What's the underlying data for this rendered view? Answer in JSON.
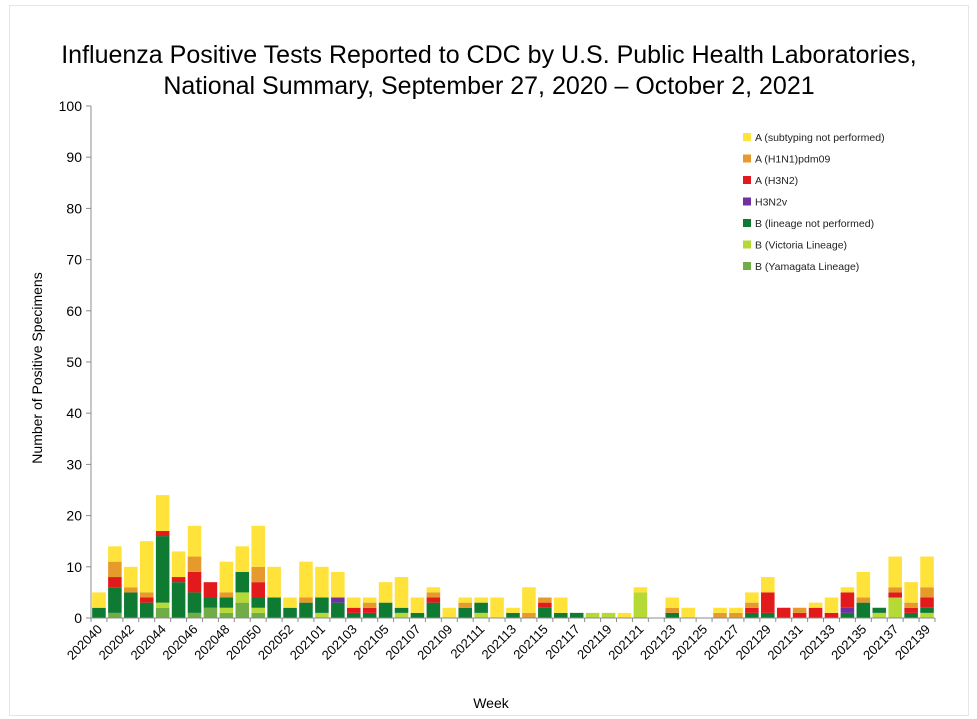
{
  "chart_data": {
    "type": "bar",
    "stacked": true,
    "title": "Influenza Positive Tests Reported to CDC by U.S. Public Health Laboratories,",
    "subtitle": "National Summary, September 27, 2020 – October 2, 2021",
    "xlabel": "Week",
    "ylabel": "Number of Positive Specimens",
    "ylim": [
      0,
      100
    ],
    "yticks": [
      0,
      10,
      20,
      30,
      40,
      50,
      60,
      70,
      80,
      90,
      100
    ],
    "grid": false,
    "legend_position": "top-right",
    "tick_labels": [
      "202040",
      "202042",
      "202044",
      "202046",
      "202048",
      "202050",
      "202052",
      "202101",
      "202103",
      "202105",
      "202107",
      "202109",
      "202111",
      "202113",
      "202115",
      "202117",
      "202119",
      "202121",
      "202123",
      "202125",
      "202127",
      "202129",
      "202131",
      "202133",
      "202135",
      "202137",
      "202139"
    ],
    "categories": [
      "202040",
      "202041",
      "202042",
      "202043",
      "202044",
      "202045",
      "202046",
      "202047",
      "202048",
      "202049",
      "202050",
      "202051",
      "202052",
      "202053",
      "202101",
      "202102",
      "202103",
      "202104",
      "202105",
      "202106",
      "202107",
      "202108",
      "202109",
      "202110",
      "202111",
      "202112",
      "202113",
      "202114",
      "202115",
      "202116",
      "202117",
      "202118",
      "202119",
      "202120",
      "202121",
      "202122",
      "202123",
      "202124",
      "202125",
      "202126",
      "202127",
      "202128",
      "202129",
      "202130",
      "202131",
      "202132",
      "202133",
      "202134",
      "202135",
      "202136",
      "202137",
      "202138",
      "202139"
    ],
    "series": [
      {
        "name": "B (Yamagata Lineage)",
        "color": "#70AD47",
        "values": [
          0,
          1,
          0,
          0,
          2,
          0,
          1,
          2,
          1,
          3,
          1,
          0,
          0,
          0,
          0,
          0,
          0,
          0,
          0,
          0,
          0,
          0,
          0,
          0,
          0,
          0,
          0,
          0,
          0,
          0,
          0,
          0,
          0,
          0,
          0,
          0,
          0,
          0,
          0,
          0,
          0,
          0,
          0,
          0,
          0,
          0,
          0,
          0,
          0,
          0,
          0,
          0,
          0
        ]
      },
      {
        "name": "B (Victoria Lineage)",
        "color": "#B5D935",
        "values": [
          0,
          0,
          0,
          0,
          1,
          0,
          0,
          0,
          1,
          2,
          1,
          0,
          0,
          0,
          1,
          0,
          0,
          0,
          0,
          1,
          0,
          0,
          0,
          0,
          1,
          0,
          0,
          0,
          0,
          0,
          0,
          1,
          1,
          0,
          5,
          0,
          0,
          0,
          0,
          0,
          0,
          0,
          0,
          0,
          0,
          0,
          0,
          0,
          0,
          1,
          4,
          0,
          1
        ]
      },
      {
        "name": "B (lineage not performed)",
        "color": "#0E7A32",
        "values": [
          2,
          5,
          5,
          3,
          13,
          7,
          4,
          2,
          2,
          4,
          2,
          4,
          2,
          3,
          3,
          3,
          1,
          1,
          3,
          1,
          1,
          3,
          0,
          2,
          2,
          0,
          1,
          0,
          2,
          1,
          1,
          0,
          0,
          0,
          0,
          0,
          1,
          0,
          0,
          0,
          0,
          1,
          1,
          0,
          0,
          0,
          0,
          1,
          3,
          1,
          0,
          1,
          1
        ]
      },
      {
        "name": "H3N2v",
        "color": "#7030A0",
        "values": [
          0,
          0,
          0,
          0,
          0,
          0,
          0,
          0,
          0,
          0,
          0,
          0,
          0,
          0,
          0,
          1,
          0,
          0,
          0,
          0,
          0,
          0,
          0,
          0,
          0,
          0,
          0,
          0,
          0,
          0,
          0,
          0,
          0,
          0,
          0,
          0,
          0,
          0,
          0,
          0,
          0,
          0,
          0,
          0,
          0,
          0,
          0,
          1,
          0,
          0,
          0,
          0,
          0
        ]
      },
      {
        "name": "A (H3N2)",
        "color": "#E31A1C",
        "values": [
          0,
          2,
          0,
          1,
          1,
          1,
          4,
          3,
          0,
          0,
          3,
          0,
          0,
          0,
          0,
          0,
          1,
          1,
          0,
          0,
          0,
          1,
          0,
          0,
          0,
          0,
          0,
          0,
          1,
          0,
          0,
          0,
          0,
          0,
          0,
          0,
          0,
          0,
          0,
          0,
          0,
          1,
          4,
          2,
          1,
          2,
          1,
          3,
          0,
          0,
          1,
          1,
          2
        ]
      },
      {
        "name": "A (H1N1)pdm09",
        "color": "#E59A2B",
        "values": [
          0,
          3,
          1,
          1,
          0,
          0,
          3,
          0,
          1,
          0,
          3,
          0,
          0,
          1,
          0,
          0,
          0,
          1,
          0,
          0,
          0,
          1,
          0,
          1,
          0,
          0,
          0,
          1,
          1,
          0,
          0,
          0,
          0,
          0,
          0,
          0,
          1,
          0,
          0,
          1,
          1,
          1,
          0,
          0,
          1,
          0,
          0,
          0,
          1,
          0,
          1,
          1,
          2
        ]
      },
      {
        "name": "A (subtyping not performed)",
        "color": "#FFE23A",
        "values": [
          3,
          3,
          4,
          10,
          7,
          5,
          6,
          0,
          6,
          5,
          8,
          6,
          2,
          7,
          6,
          5,
          2,
          1,
          4,
          6,
          3,
          1,
          2,
          1,
          1,
          4,
          1,
          5,
          0,
          3,
          0,
          0,
          0,
          1,
          1,
          0,
          2,
          2,
          0,
          1,
          1,
          2,
          3,
          0,
          0,
          1,
          3,
          1,
          5,
          0,
          6,
          4,
          6
        ]
      }
    ]
  }
}
